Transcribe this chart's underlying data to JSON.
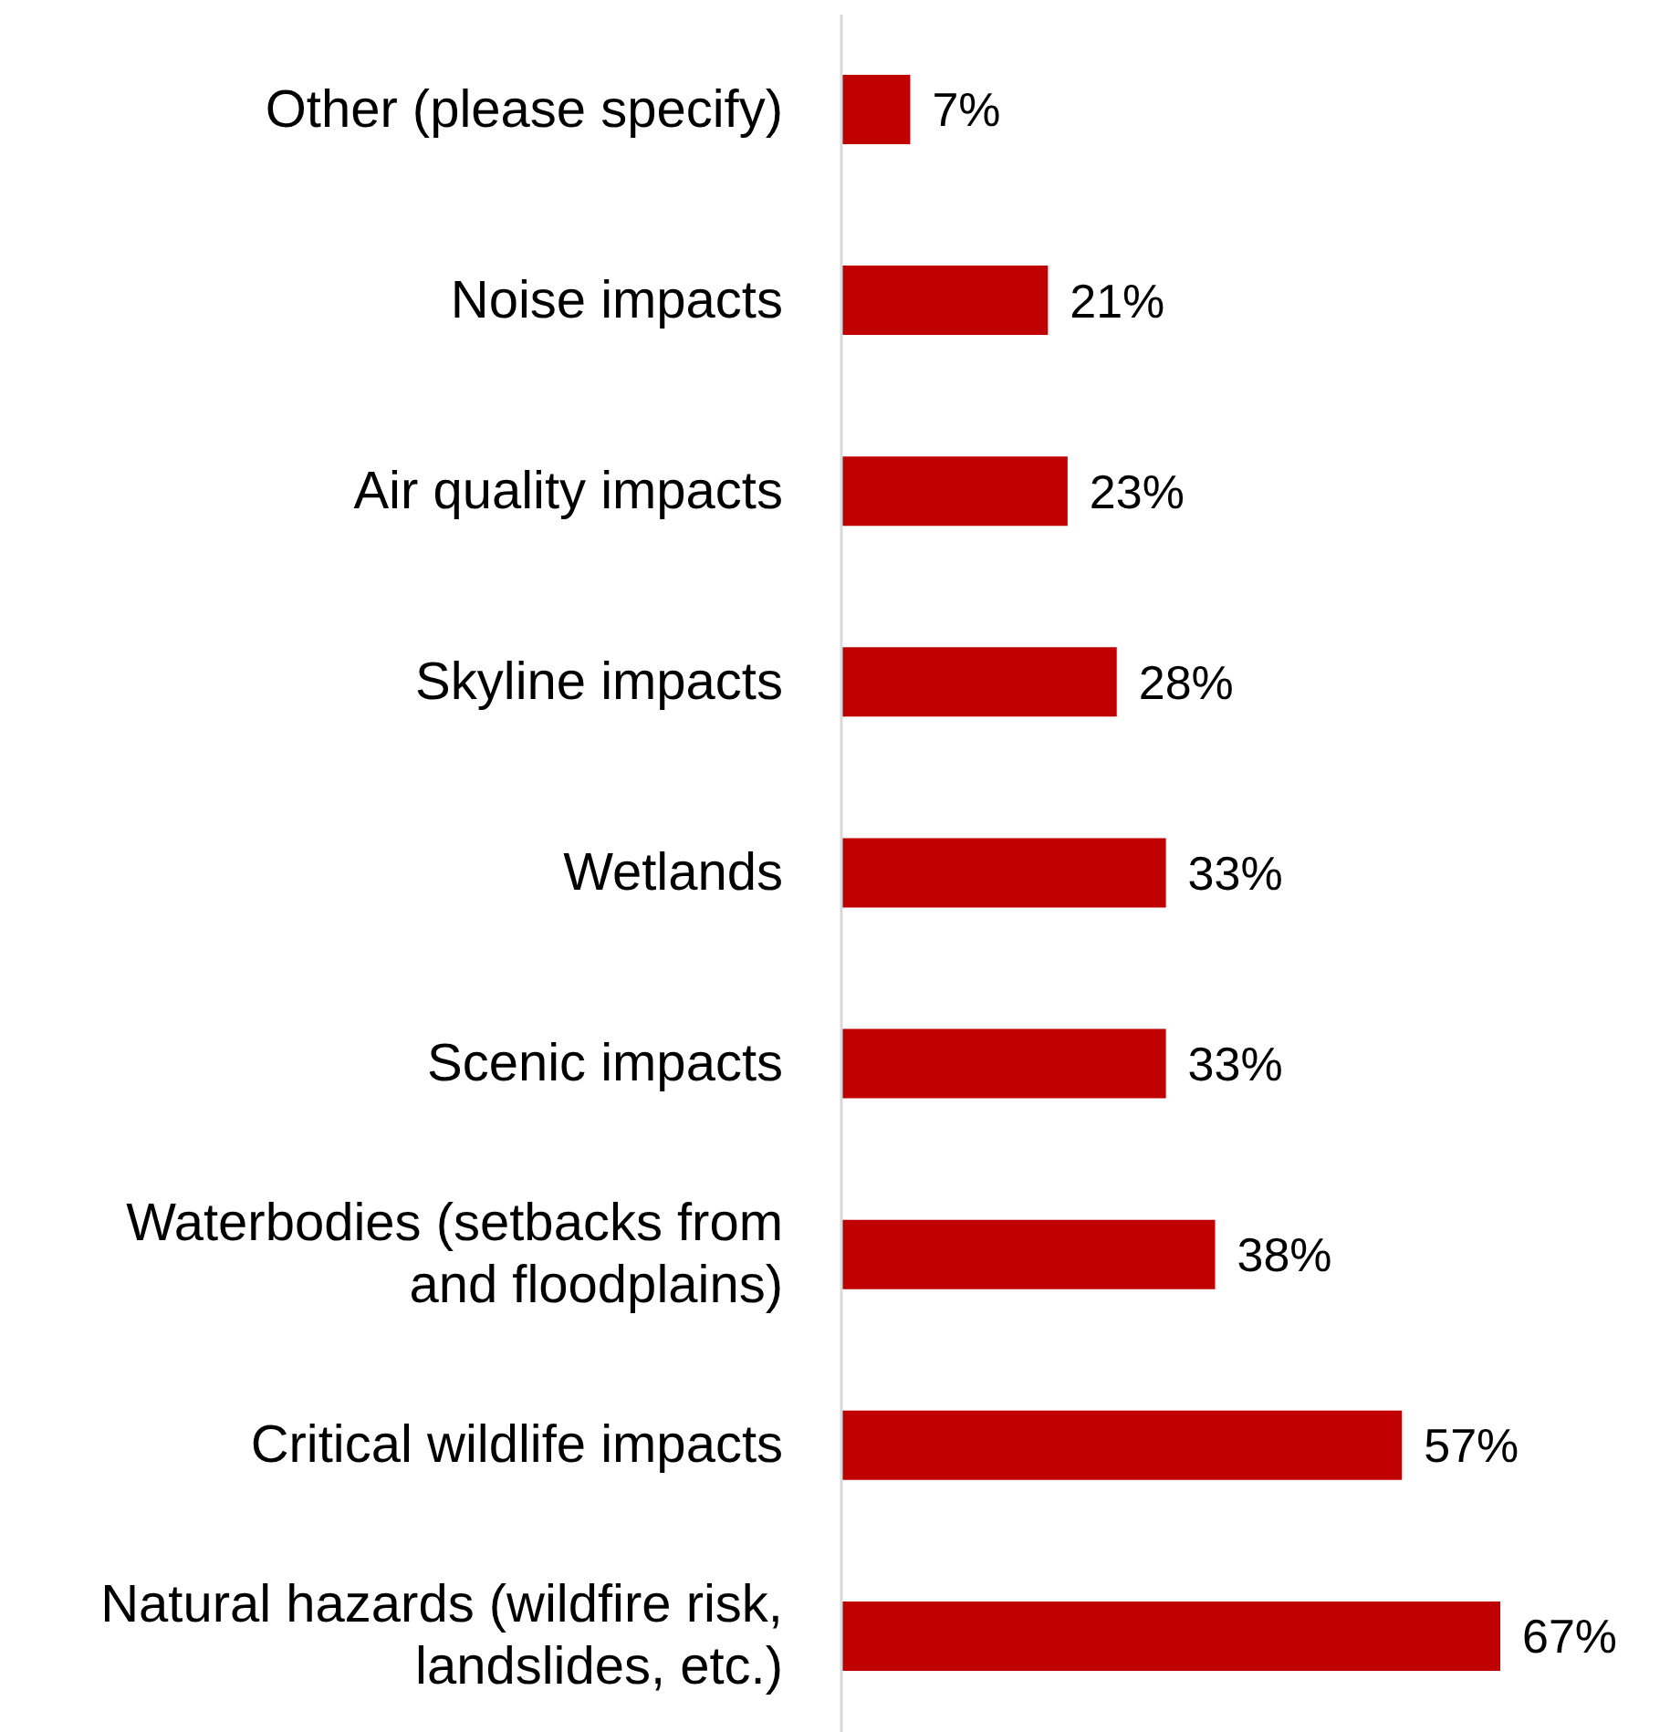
{
  "chart_data": {
    "type": "bar",
    "orientation": "horizontal",
    "categories": [
      "Other (please specify)",
      "Noise impacts",
      "Air quality impacts",
      "Skyline impacts",
      "Wetlands",
      "Scenic impacts",
      "Waterbodies (setbacks from and floodplains)",
      "Critical wildlife impacts",
      "Natural hazards (wildfire risk, landslides, etc.)"
    ],
    "values": [
      7,
      21,
      23,
      28,
      33,
      33,
      38,
      57,
      67
    ],
    "value_labels": [
      "7%",
      "21%",
      "23%",
      "28%",
      "33%",
      "33%",
      "38%",
      "57%",
      "67%"
    ],
    "color": "#c00000",
    "grid": false,
    "legend": false
  }
}
